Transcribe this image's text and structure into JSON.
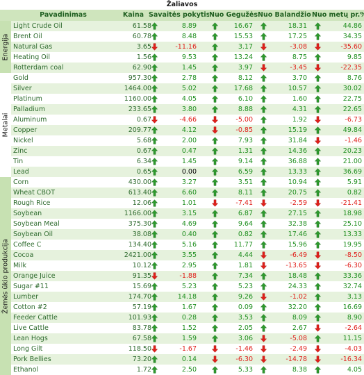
{
  "title": "Žaliavos",
  "headers": {
    "name": "Pavadinimas",
    "price": "Kaina",
    "week": "Savaitės pokytis %",
    "may": "Nuo Gegužės %",
    "april": "Nuo Balandžio %",
    "ytd": "Nuo metų pr.%"
  },
  "groups": [
    {
      "label": "Energija",
      "rows": 5
    },
    {
      "label": "Metalai",
      "rows": 10
    },
    {
      "label": "Žemės ūkio produkcija",
      "rows": 19
    }
  ],
  "arrow_colors": {
    "up": "#2e9a2e",
    "down": "#e0201b"
  },
  "rows": [
    {
      "name": "Light Crude Oil",
      "price": "61.58",
      "week": "8.89",
      "may": "16.67",
      "april": "18.31",
      "ytd": "44.86",
      "icons": [
        "up",
        "up",
        "up",
        "up"
      ]
    },
    {
      "name": "Brent Oil",
      "price": "60.78",
      "week": "8.48",
      "may": "15.53",
      "april": "17.25",
      "ytd": "34.35",
      "icons": [
        "up",
        "up",
        "up",
        "up"
      ]
    },
    {
      "name": "Natural Gas",
      "price": "3.65",
      "week": "-11.16",
      "may": "3.17",
      "april": "-3.08",
      "ytd": "-35.60",
      "icons": [
        "down",
        "up",
        "down",
        "down"
      ]
    },
    {
      "name": "Heating Oil",
      "price": "1.56",
      "week": "9.53",
      "may": "13.24",
      "april": "8.75",
      "ytd": "9.85",
      "icons": [
        "up",
        "up",
        "up",
        "up"
      ]
    },
    {
      "name": "Rotterdam coal",
      "price": "62.90",
      "week": "1.45",
      "may": "3.97",
      "april": "-3.45",
      "ytd": "-22.35",
      "icons": [
        "up",
        "up",
        "down",
        "down"
      ]
    },
    {
      "name": "Gold",
      "price": "957.30",
      "week": "2.78",
      "may": "8.12",
      "april": "3.70",
      "ytd": "8.76",
      "icons": [
        "up",
        "up",
        "up",
        "up"
      ]
    },
    {
      "name": "Silver",
      "price": "1464.00",
      "week": "5.02",
      "may": "17.68",
      "april": "10.57",
      "ytd": "30.02",
      "icons": [
        "up",
        "up",
        "up",
        "up"
      ]
    },
    {
      "name": "Platinum",
      "price": "1160.00",
      "week": "4.05",
      "may": "6.10",
      "april": "1.60",
      "ytd": "22.75",
      "icons": [
        "up",
        "up",
        "up",
        "up"
      ]
    },
    {
      "name": "Palladium",
      "price": "233.65",
      "week": "3.80",
      "may": "8.88",
      "april": "4.31",
      "ytd": "22.65",
      "icons": [
        "up",
        "up",
        "up",
        "up"
      ]
    },
    {
      "name": "Aluminum",
      "price": "0.67",
      "week": "-4.66",
      "may": "-5.00",
      "april": "1.92",
      "ytd": "-6.73",
      "icons": [
        "down",
        "down",
        "up",
        "down"
      ]
    },
    {
      "name": "Copper",
      "price": "209.77",
      "week": "4.12",
      "may": "-0.85",
      "april": "15.19",
      "ytd": "49.84",
      "icons": [
        "up",
        "down",
        "up",
        "up"
      ]
    },
    {
      "name": "Nickel",
      "price": "5.68",
      "week": "2.00",
      "may": "7.93",
      "april": "31.84",
      "ytd": "-1.46",
      "icons": [
        "up",
        "up",
        "up",
        "down"
      ]
    },
    {
      "name": "Zinc",
      "price": "0.67",
      "week": "0.47",
      "may": "1.31",
      "april": "14.36",
      "ytd": "20.23",
      "icons": [
        "up",
        "up",
        "up",
        "up"
      ]
    },
    {
      "name": "Tin",
      "price": "6.34",
      "week": "1.45",
      "may": "9.14",
      "april": "36.88",
      "ytd": "21.00",
      "icons": [
        "up",
        "up",
        "up",
        "up"
      ]
    },
    {
      "name": "Lead",
      "price": "0.65",
      "week": "0.00",
      "may": "6.59",
      "april": "13.33",
      "ytd": "36.69",
      "icons": [
        "up",
        "up",
        "up",
        "up"
      ]
    },
    {
      "name": "Corn",
      "price": "430.00",
      "week": "3.27",
      "may": "3.51",
      "april": "10.94",
      "ytd": "5.91",
      "icons": [
        "up",
        "up",
        "up",
        "up"
      ]
    },
    {
      "name": "Wheat CBOT",
      "price": "613.40",
      "week": "6.60",
      "may": "8.11",
      "april": "20.75",
      "ytd": "0.82",
      "icons": [
        "up",
        "up",
        "up",
        "up"
      ]
    },
    {
      "name": "Rough Rice",
      "price": "12.06",
      "week": "1.01",
      "may": "-7.41",
      "april": "-2.59",
      "ytd": "-21.41",
      "icons": [
        "up",
        "down",
        "down",
        "down"
      ]
    },
    {
      "name": "Soybean",
      "price": "1166.00",
      "week": "3.15",
      "may": "6.87",
      "april": "27.15",
      "ytd": "18.98",
      "icons": [
        "up",
        "up",
        "up",
        "up"
      ]
    },
    {
      "name": "Soybean Meal",
      "price": "375.30",
      "week": "4.69",
      "may": "9.64",
      "april": "32.38",
      "ytd": "25.10",
      "icons": [
        "up",
        "up",
        "up",
        "up"
      ]
    },
    {
      "name": "Soybean Oil",
      "price": "38.08",
      "week": "0.40",
      "may": "0.82",
      "april": "17.46",
      "ytd": "13.33",
      "icons": [
        "up",
        "up",
        "up",
        "up"
      ]
    },
    {
      "name": "Coffee C",
      "price": "134.40",
      "week": "5.16",
      "may": "11.77",
      "april": "15.96",
      "ytd": "19.95",
      "icons": [
        "up",
        "up",
        "up",
        "up"
      ]
    },
    {
      "name": "Cocoa",
      "price": "2421.00",
      "week": "3.55",
      "may": "4.44",
      "april": "-6.49",
      "ytd": "-8.50",
      "icons": [
        "up",
        "up",
        "down",
        "down"
      ]
    },
    {
      "name": "Milk",
      "price": "10.12",
      "week": "2.95",
      "may": "1.81",
      "april": "-13.65",
      "ytd": "-6.30",
      "icons": [
        "up",
        "up",
        "down",
        "down"
      ]
    },
    {
      "name": "Orange Juice",
      "price": "91.35",
      "week": "-1.88",
      "may": "7.34",
      "april": "18.48",
      "ytd": "33.36",
      "icons": [
        "down",
        "up",
        "up",
        "up"
      ]
    },
    {
      "name": "Sugar #11",
      "price": "15.69",
      "week": "5.23",
      "may": "5.23",
      "april": "24.33",
      "ytd": "32.74",
      "icons": [
        "up",
        "up",
        "up",
        "up"
      ]
    },
    {
      "name": "Lumber",
      "price": "174.70",
      "week": "14.18",
      "may": "9.26",
      "april": "-1.02",
      "ytd": "3.13",
      "icons": [
        "up",
        "up",
        "down",
        "up"
      ]
    },
    {
      "name": "Cotton #2",
      "price": "57.19",
      "week": "1.67",
      "may": "0.09",
      "april": "32.20",
      "ytd": "16.69",
      "icons": [
        "up",
        "up",
        "up",
        "up"
      ]
    },
    {
      "name": "Feeder Cattle",
      "price": "101.93",
      "week": "0.28",
      "may": "3.53",
      "april": "8.09",
      "ytd": "8.90",
      "icons": [
        "up",
        "up",
        "up",
        "up"
      ]
    },
    {
      "name": "Live Cattle",
      "price": "83.78",
      "week": "1.52",
      "may": "2.05",
      "april": "2.67",
      "ytd": "-2.64",
      "icons": [
        "up",
        "up",
        "up",
        "down"
      ]
    },
    {
      "name": "Lean Hogs",
      "price": "67.58",
      "week": "1.59",
      "may": "3.06",
      "april": "-5.08",
      "ytd": "11.15",
      "icons": [
        "up",
        "up",
        "down",
        "up"
      ]
    },
    {
      "name": "Long Gilt",
      "price": "118.50",
      "week": "-1.67",
      "may": "-1.46",
      "april": "-2.49",
      "ytd": "-4.03",
      "icons": [
        "down",
        "down",
        "down",
        "down"
      ]
    },
    {
      "name": "Pork Bellies",
      "price": "73.20",
      "week": "0.14",
      "may": "-6.30",
      "april": "-14.78",
      "ytd": "-16.34",
      "icons": [
        "up",
        "down",
        "down",
        "down"
      ]
    },
    {
      "name": "Ethanol",
      "price": "1.72",
      "week": "2.50",
      "may": "5.33",
      "april": "8.38",
      "ytd": "4.05",
      "icons": [
        "up",
        "up",
        "up",
        "up"
      ]
    }
  ]
}
